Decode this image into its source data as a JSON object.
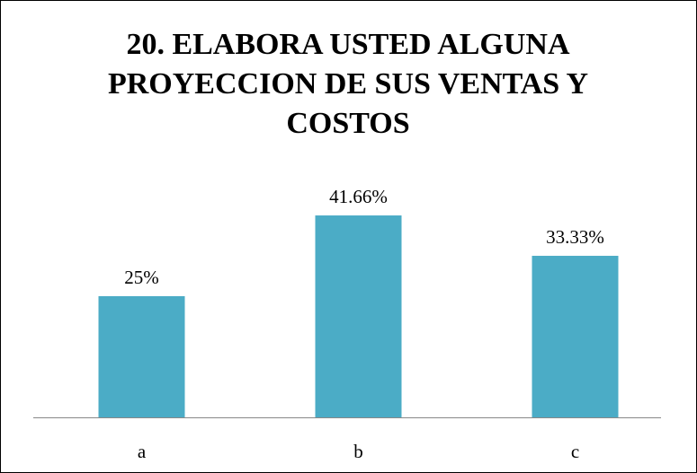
{
  "chart_data": {
    "type": "bar",
    "title": "20. ELABORA USTED ALGUNA PROYECCION DE SUS VENTAS Y COSTOS",
    "categories": [
      "a",
      "b",
      "c"
    ],
    "values": [
      25,
      41.66,
      33.33
    ],
    "value_labels": [
      "25%",
      "41.66%",
      "33.33%"
    ],
    "color": "#4bacc6"
  }
}
